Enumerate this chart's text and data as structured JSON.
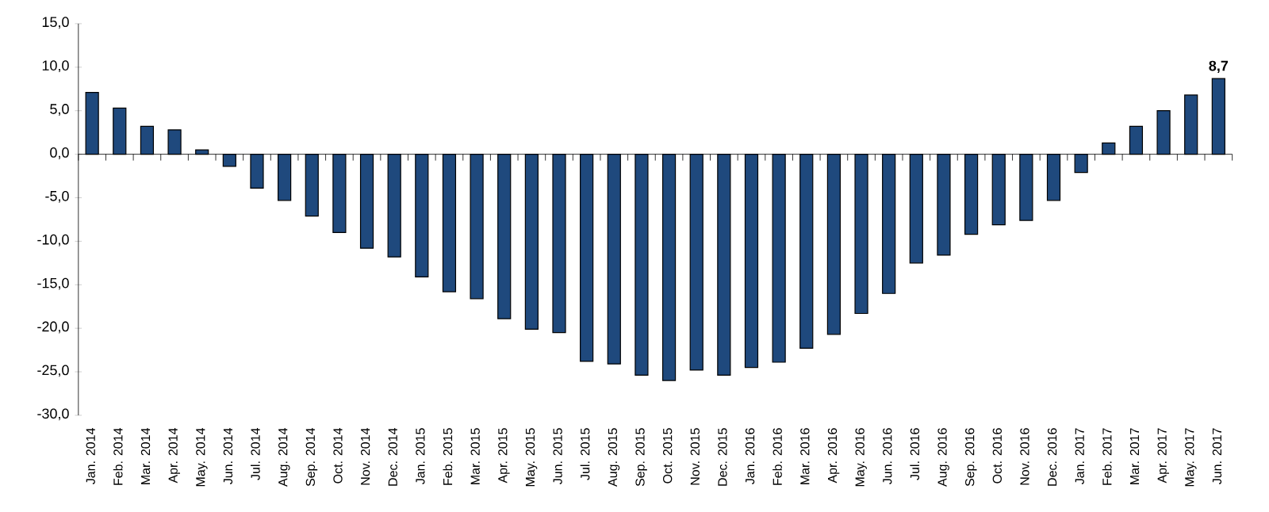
{
  "chart_data": {
    "type": "bar",
    "categories": [
      "Jan. 2014",
      "Feb. 2014",
      "Mar. 2014",
      "Apr. 2014",
      "May. 2014",
      "Jun. 2014",
      "Jul. 2014",
      "Aug. 2014",
      "Sep. 2014",
      "Oct. 2014",
      "Nov. 2014",
      "Dec. 2014",
      "Jan. 2015",
      "Feb. 2015",
      "Mar. 2015",
      "Apr. 2015",
      "May. 2015",
      "Jun. 2015",
      "Jul. 2015",
      "Aug. 2015",
      "Sep. 2015",
      "Oct. 2015",
      "Nov. 2015",
      "Dec. 2015",
      "Jan. 2016",
      "Feb. 2016",
      "Mar. 2016",
      "Apr. 2016",
      "May. 2016",
      "Jun. 2016",
      "Jul. 2016",
      "Aug. 2016",
      "Sep. 2016",
      "Oct. 2016",
      "Nov. 2016",
      "Dec. 2016",
      "Jan. 2017",
      "Feb. 2017",
      "Mar. 2017",
      "Apr. 2017",
      "May. 2017",
      "Jun. 2017"
    ],
    "values": [
      7.1,
      5.3,
      3.2,
      2.8,
      0.5,
      -1.4,
      -3.9,
      -5.3,
      -7.1,
      -9.0,
      -10.8,
      -11.8,
      -14.1,
      -15.8,
      -16.6,
      -18.9,
      -20.1,
      -20.5,
      -23.8,
      -24.1,
      -25.4,
      -26.0,
      -24.8,
      -25.4,
      -24.5,
      -23.9,
      -22.3,
      -20.7,
      -18.3,
      -16.0,
      -12.5,
      -11.6,
      -9.2,
      -8.1,
      -7.6,
      -5.3,
      -2.1,
      1.3,
      3.2,
      5.0,
      6.8,
      8.7
    ],
    "value_labels": [
      null,
      null,
      null,
      null,
      null,
      null,
      null,
      null,
      null,
      null,
      null,
      null,
      null,
      null,
      null,
      null,
      null,
      null,
      null,
      null,
      null,
      null,
      null,
      null,
      null,
      null,
      null,
      null,
      null,
      null,
      null,
      null,
      null,
      null,
      null,
      null,
      null,
      null,
      null,
      null,
      null,
      "8,7"
    ],
    "color": "#1f497d",
    "ylim": [
      -30,
      15
    ],
    "yticks": [
      {
        "value": -30,
        "label": "-30,0"
      },
      {
        "value": -25,
        "label": "-25,0"
      },
      {
        "value": -20,
        "label": "-20,0"
      },
      {
        "value": -15,
        "label": "-15,0"
      },
      {
        "value": -10,
        "label": "-10,0"
      },
      {
        "value": -5,
        "label": "-5,0"
      },
      {
        "value": 0,
        "label": "0,0"
      },
      {
        "value": 5,
        "label": "5,0"
      },
      {
        "value": 10,
        "label": "10,0"
      },
      {
        "value": 15,
        "label": "15,0"
      }
    ]
  }
}
